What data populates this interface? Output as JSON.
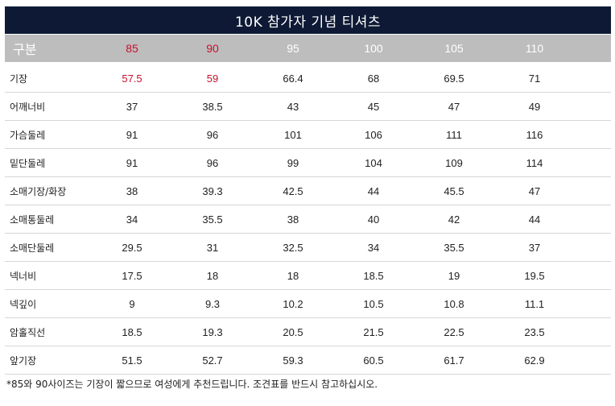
{
  "title": "10K 참가자 기념 티셔츠",
  "header": {
    "label": "구분",
    "sizes": [
      "85",
      "90",
      "95",
      "100",
      "105",
      "110"
    ],
    "highlighted_sizes": [
      "85",
      "90"
    ]
  },
  "colors": {
    "title_bg": "#0e1a35",
    "header_bg": "#bdbdbd",
    "highlight": "#c8102e",
    "grid_line": "#d6d6d6"
  },
  "rows": [
    {
      "label": "기장",
      "values": [
        "57.5",
        "59",
        "66.4",
        "68",
        "69.5",
        "71"
      ]
    },
    {
      "label": "어깨너비",
      "values": [
        "37",
        "38.5",
        "43",
        "45",
        "47",
        "49"
      ]
    },
    {
      "label": "가슴둘레",
      "values": [
        "91",
        "96",
        "101",
        "106",
        "111",
        "116"
      ]
    },
    {
      "label": "밑단둘레",
      "values": [
        "91",
        "96",
        "99",
        "104",
        "109",
        "114"
      ]
    },
    {
      "label": "소매기장/화장",
      "values": [
        "38",
        "39.3",
        "42.5",
        "44",
        "45.5",
        "47"
      ]
    },
    {
      "label": "소매통둘레",
      "values": [
        "34",
        "35.5",
        "38",
        "40",
        "42",
        "44"
      ]
    },
    {
      "label": "소매단둘레",
      "values": [
        "29.5",
        "31",
        "32.5",
        "34",
        "35.5",
        "37"
      ]
    },
    {
      "label": "넥너비",
      "values": [
        "17.5",
        "18",
        "18",
        "18.5",
        "19",
        "19.5"
      ]
    },
    {
      "label": "넥깊이",
      "values": [
        "9",
        "9.3",
        "10.2",
        "10.5",
        "10.8",
        "11.1"
      ]
    },
    {
      "label": "암홀직선",
      "values": [
        "18.5",
        "19.3",
        "20.5",
        "21.5",
        "22.5",
        "23.5"
      ]
    },
    {
      "label": "앞기장",
      "values": [
        "51.5",
        "52.7",
        "59.3",
        "60.5",
        "61.7",
        "62.9"
      ]
    }
  ],
  "footnote": "*85와 90사이즈는 기장이 짧으므로 여성에게 추천드립니다.  조견표를 반드시 참고하십시오."
}
